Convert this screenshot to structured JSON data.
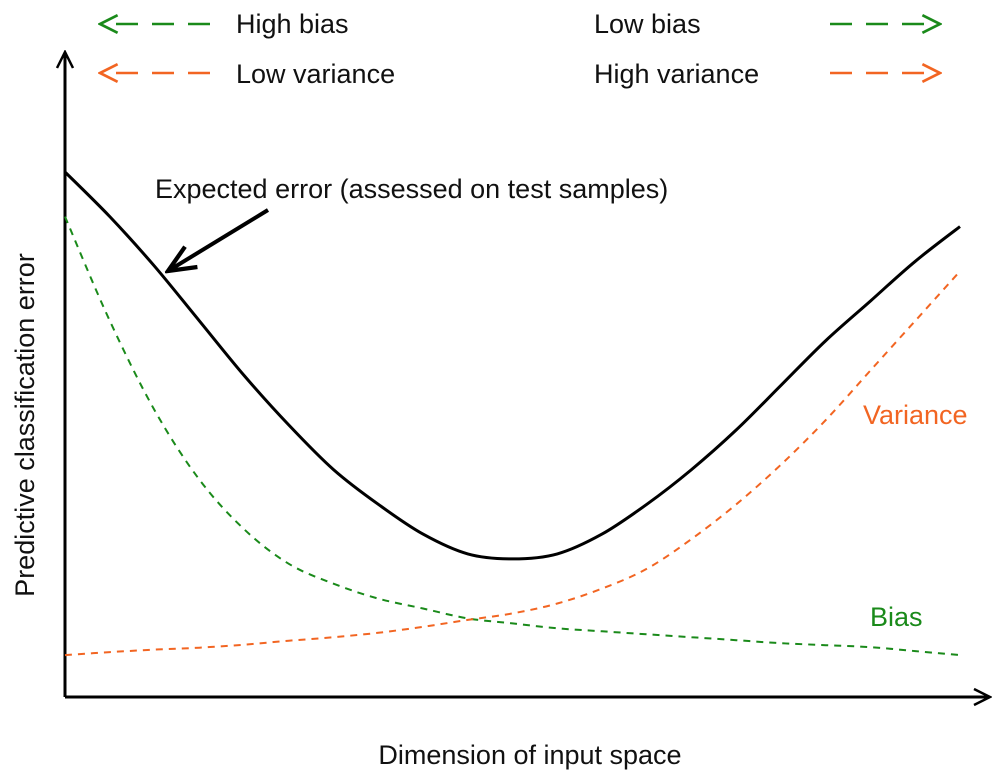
{
  "chart_data": {
    "type": "line",
    "title": "",
    "xlabel": "Dimension of input space",
    "ylabel": "Predictive classification error",
    "xlim": [
      0,
      100
    ],
    "ylim": [
      0,
      100
    ],
    "grid": false,
    "x": [
      0,
      5,
      10,
      15,
      20,
      25,
      30,
      35,
      40,
      45,
      50,
      55,
      60,
      65,
      70,
      75,
      80,
      85,
      90,
      95,
      100
    ],
    "series": [
      {
        "name": "Expected error (assessed on test samples)",
        "style": "solid",
        "color": "#000000",
        "values": [
          100,
          91,
          81,
          70,
          59,
          49,
          40,
          33,
          27,
          23,
          22,
          23,
          27,
          33,
          40,
          48,
          57,
          66,
          74,
          82,
          89
        ]
      },
      {
        "name": "Bias",
        "label": "Bias",
        "style": "dashed",
        "color": "#1a8a1a",
        "values": [
          91,
          70,
          52,
          38,
          28,
          21,
          17,
          14,
          12,
          10,
          9,
          8,
          7.4,
          6.8,
          6.2,
          5.6,
          5,
          4.6,
          4.2,
          3.4,
          2.6
        ]
      },
      {
        "name": "Variance",
        "label": "Variance",
        "style": "dashed",
        "color": "#f26522",
        "values": [
          2.6,
          3.2,
          3.7,
          4.1,
          4.7,
          5.5,
          6.2,
          7.1,
          8.3,
          9.7,
          11,
          13,
          16,
          20,
          26,
          33,
          41,
          50,
          60,
          70,
          80
        ]
      }
    ],
    "legend": {
      "placement": "top",
      "entries": [
        {
          "left_label": "High bias",
          "right_label": "Low bias",
          "color": "#1a8a1a"
        },
        {
          "left_label": "Low variance",
          "right_label": "High variance",
          "color": "#f26522"
        }
      ]
    },
    "annotations": [
      {
        "text": "Expected error (assessed on test samples)",
        "points_to_series": "Expected error (assessed on test samples)",
        "at_x": 12
      }
    ]
  }
}
